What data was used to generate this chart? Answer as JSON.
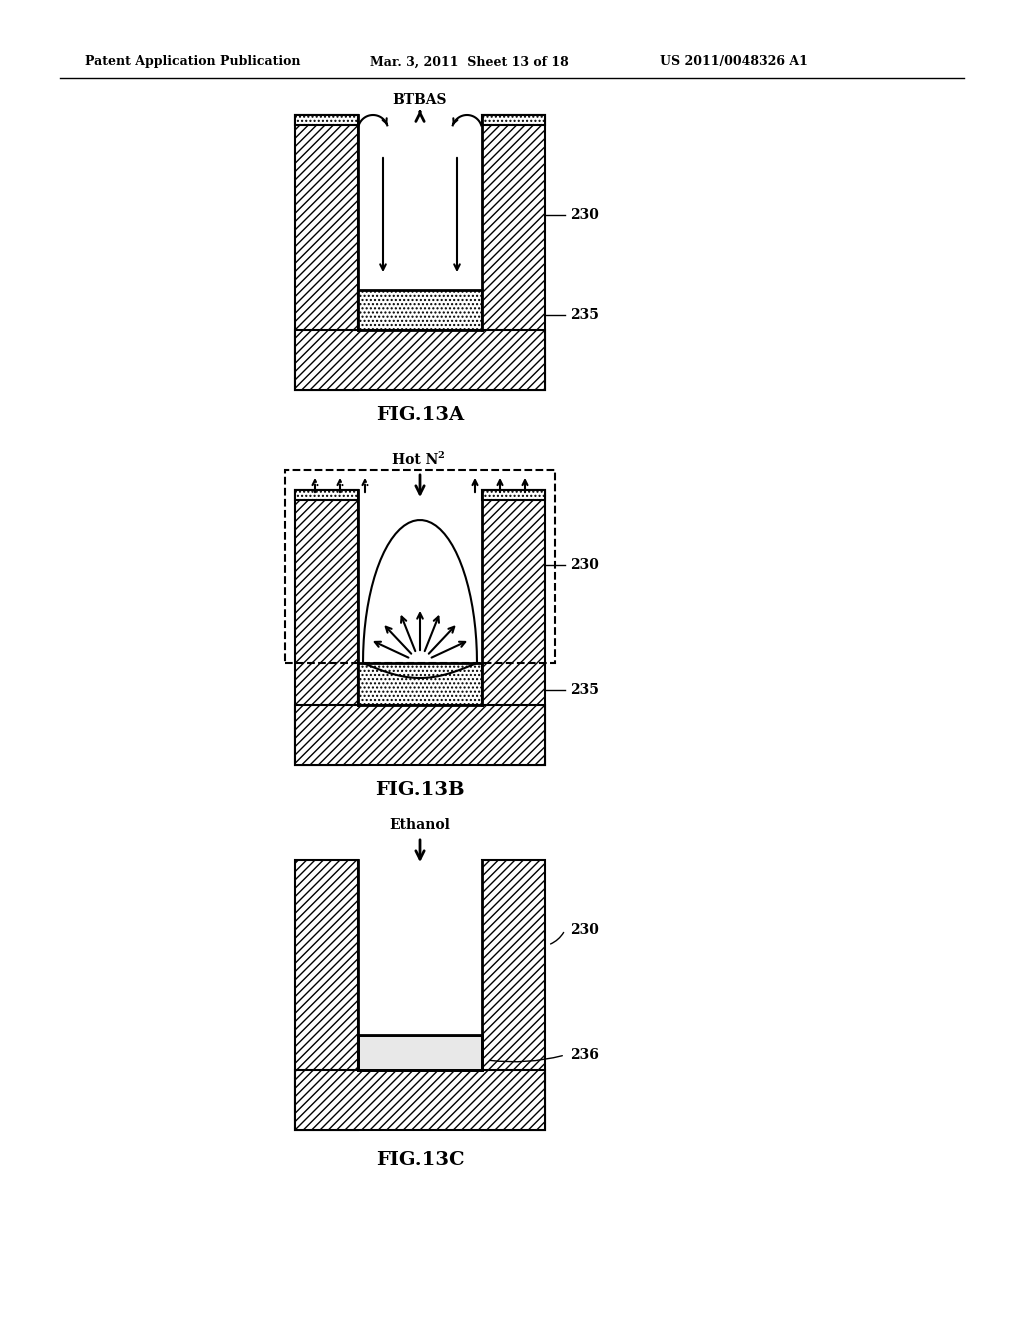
{
  "header_left": "Patent Application Publication",
  "header_middle": "Mar. 3, 2011  Sheet 13 of 18",
  "header_right": "US 2011/0048326 A1",
  "fig13a_label": "FIG.13A",
  "fig13b_label": "FIG.13B",
  "fig13c_label": "FIG.13C",
  "btbas_label": "BTBAS",
  "hotn2_label": "Hot N",
  "hotn2_subscript": "2",
  "ethanol_label": "Ethanol",
  "label_230": "230",
  "label_235": "235",
  "label_236": "236",
  "bg_color": "#ffffff",
  "hatch_color": "#000000",
  "line_color": "#000000",
  "dot_fill": "#d8d8d8"
}
